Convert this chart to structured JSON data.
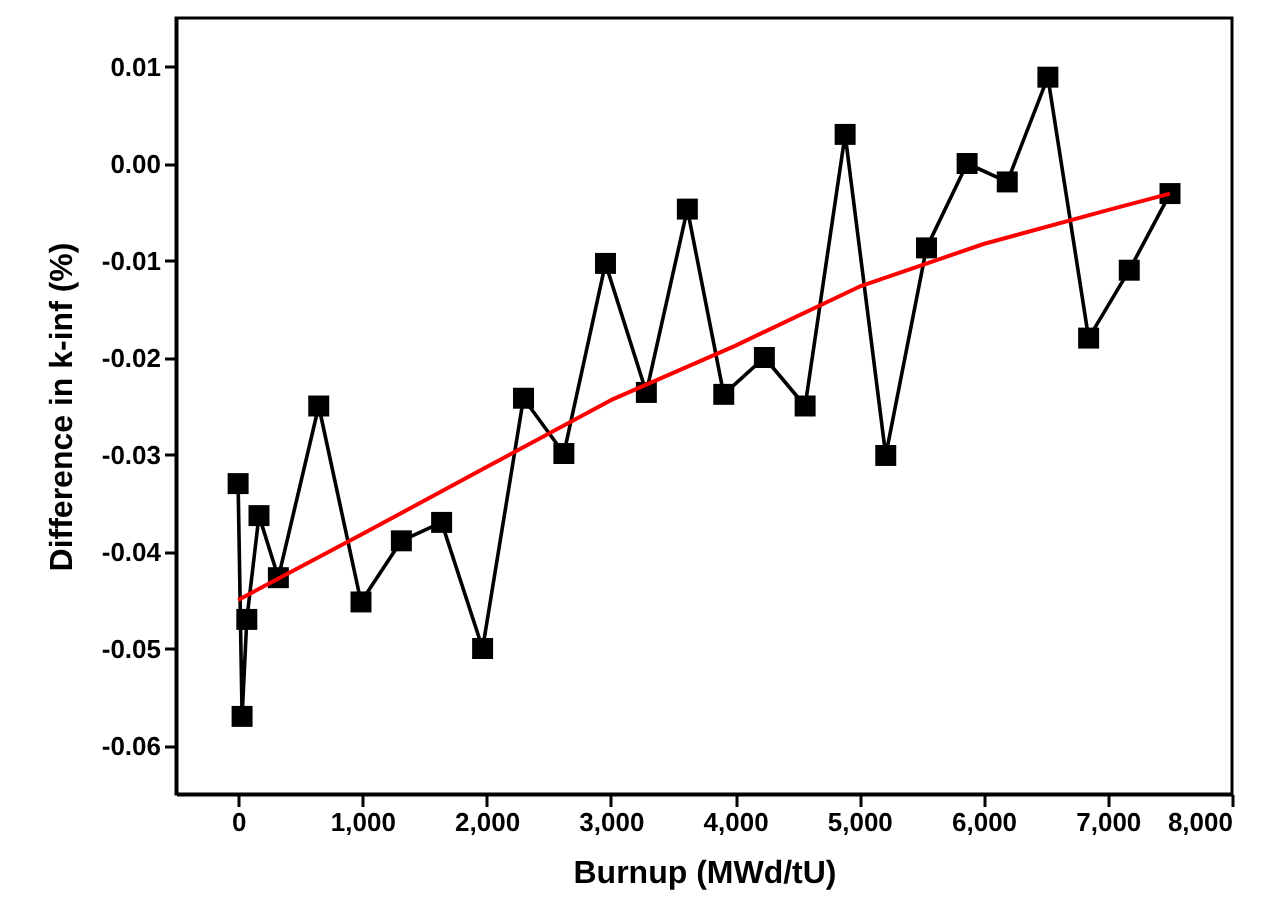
{
  "chart_data": {
    "type": "line",
    "xlabel": "Burnup (MWd/tU)",
    "ylabel": "Difference in k-inf (%)",
    "grid": false,
    "marker": "square",
    "line_style": "solid",
    "xlim": [
      -500,
      8000
    ],
    "ylim": [
      -0.065,
      0.015
    ],
    "xticks": [
      {
        "value": 0,
        "label": "0"
      },
      {
        "value": 1000,
        "label": "1,000"
      },
      {
        "value": 2000,
        "label": "2,000"
      },
      {
        "value": 3000,
        "label": "3,000"
      },
      {
        "value": 4000,
        "label": "4,000"
      },
      {
        "value": 5000,
        "label": "5,000"
      },
      {
        "value": 6000,
        "label": "6,000"
      },
      {
        "value": 7000,
        "label": "7,000"
      },
      {
        "value": 8000,
        "label": "8,000"
      }
    ],
    "yticks": [
      {
        "value": -0.06,
        "label": "-0.06"
      },
      {
        "value": -0.05,
        "label": "-0.05"
      },
      {
        "value": -0.04,
        "label": "-0.04"
      },
      {
        "value": -0.03,
        "label": "-0.03"
      },
      {
        "value": -0.02,
        "label": "-0.02"
      },
      {
        "value": -0.01,
        "label": "-0.01"
      },
      {
        "value": 0,
        "label": "0.00"
      },
      {
        "value": 0.01,
        "label": "0.01"
      }
    ],
    "series": [
      {
        "color": "#000000",
        "x": [
          0,
          32,
          70,
          168,
          324,
          649,
          989,
          1314,
          1638,
          1968,
          2297,
          2622,
          2957,
          3286,
          3616,
          3909,
          4236,
          4564,
          4886,
          5213,
          5541,
          5868,
          6191,
          6518,
          6846,
          7173,
          7501
        ],
        "values": [
          -0.033,
          -0.057,
          -0.047,
          -0.0363,
          -0.0427,
          -0.025,
          -0.0452,
          -0.0389,
          -0.037,
          -0.05,
          -0.0242,
          -0.0299,
          -0.0103,
          -0.0236,
          -0.0047,
          -0.0238,
          -0.02,
          -0.025,
          0.003,
          -0.0301,
          -0.0087,
          0,
          -0.0019,
          0.0089,
          -0.018,
          -0.011,
          -0.0031
        ]
      },
      {
        "marker": "none",
        "color": "#ff0000",
        "x": [
          0,
          1000,
          2000,
          3000,
          4000,
          5000,
          6000,
          7000,
          7500
        ],
        "values": [
          -0.045,
          -0.0382,
          -0.0313,
          -0.0244,
          -0.0188,
          -0.0127,
          -0.0083,
          -0.0048,
          -0.0031
        ]
      }
    ]
  }
}
